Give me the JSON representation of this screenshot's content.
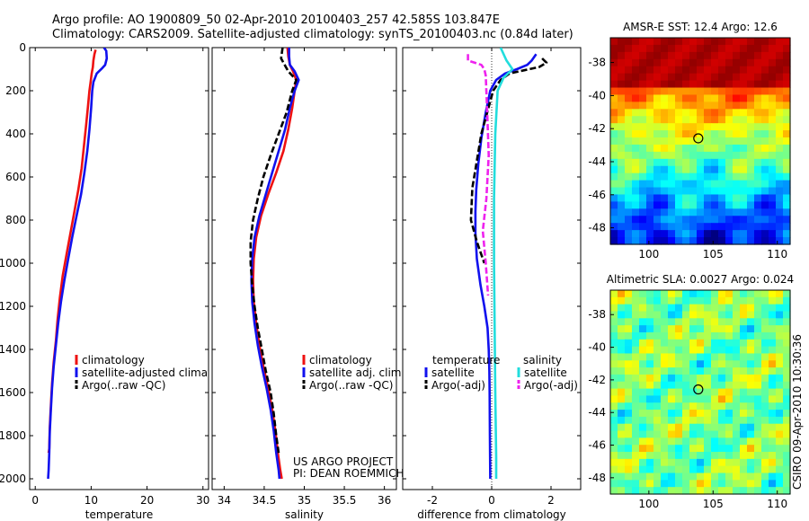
{
  "header": {
    "line1": "Argo profile: AO 1900809_50 02-Apr-2010 20100403_257 42.585S 103.847E",
    "line2": "Climatology: CARS2009. Satellite-adjusted climatology: synTS_20100403.nc (0.84d later)"
  },
  "side_label": "CSIRO 09-Apr-2010 10:30:36",
  "project": {
    "line1": "US ARGO PROJECT",
    "line2": "PI: DEAN ROEMMICH"
  },
  "colors": {
    "red": "#ee1111",
    "blue": "#1111ee",
    "black": "#000000",
    "cyan": "#22dddd",
    "magenta": "#ee22ee"
  },
  "chart_data": [
    {
      "type": "line",
      "xlabel": "temperature",
      "ylim": [
        2050,
        0
      ],
      "xlim": [
        -1,
        31
      ],
      "yticks": [
        0,
        200,
        400,
        600,
        800,
        1000,
        1200,
        1400,
        1600,
        1800,
        2000
      ],
      "xticks": [
        0,
        10,
        20,
        30
      ],
      "legend": [
        "climatology",
        "satellite-adjusted climatology",
        "Argo(..raw -QC)"
      ],
      "series": [
        {
          "name": "climatology",
          "color": "red",
          "dash": false,
          "x": [
            10.8,
            10.6,
            10.4,
            10.3,
            10.1,
            9.9,
            9.7,
            9.4,
            9.1,
            8.7,
            8.3,
            7.7,
            7.0,
            6.3,
            5.6,
            4.9,
            4.4,
            4.0,
            3.7,
            3.3,
            3.0,
            2.8,
            2.6,
            2.5,
            2.4
          ],
          "y": [
            10,
            30,
            60,
            90,
            120,
            160,
            200,
            280,
            360,
            460,
            560,
            660,
            760,
            860,
            960,
            1060,
            1160,
            1260,
            1360,
            1460,
            1560,
            1660,
            1760,
            1860,
            1880
          ]
        },
        {
          "name": "satellite-adjusted climatology",
          "color": "blue",
          "dash": false,
          "x": [
            12.3,
            12.7,
            12.8,
            12.5,
            12.0,
            11.0,
            10.4,
            10.2,
            10.0,
            9.7,
            9.3,
            8.8,
            8.2,
            7.4,
            6.6,
            5.9,
            5.2,
            4.6,
            4.1,
            3.7,
            3.3,
            3.0,
            2.8,
            2.6,
            2.5,
            2.4,
            2.3
          ],
          "y": [
            0,
            15,
            50,
            80,
            95,
            120,
            160,
            200,
            280,
            380,
            480,
            580,
            680,
            780,
            880,
            980,
            1080,
            1180,
            1280,
            1380,
            1480,
            1580,
            1680,
            1780,
            1880,
            1960,
            2000
          ]
        }
      ]
    },
    {
      "type": "line",
      "xlabel": "salinity",
      "ylim": [
        2050,
        0
      ],
      "xlim": [
        33.85,
        36.15
      ],
      "xticks": [
        34,
        34.5,
        35,
        35.5,
        36
      ],
      "legend": [
        "climatology",
        "satellite adj. clim.",
        "Argo(..raw -QC)"
      ],
      "series": [
        {
          "name": "climatology",
          "color": "red",
          "dash": false,
          "x": [
            34.79,
            34.8,
            34.82,
            34.86,
            34.9,
            34.88,
            34.85,
            34.8,
            34.74,
            34.65,
            34.55,
            34.46,
            34.4,
            34.37,
            34.36,
            34.37,
            34.4,
            34.44,
            34.49,
            34.55,
            34.6,
            34.64,
            34.67,
            34.7,
            34.72
          ],
          "y": [
            0,
            40,
            80,
            110,
            150,
            200,
            280,
            380,
            480,
            580,
            680,
            780,
            880,
            980,
            1080,
            1180,
            1280,
            1380,
            1480,
            1580,
            1680,
            1780,
            1880,
            1960,
            2000
          ]
        },
        {
          "name": "satellite adj. clim.",
          "color": "blue",
          "dash": false,
          "x": [
            34.81,
            34.81,
            34.82,
            34.88,
            34.93,
            34.88,
            34.82,
            34.76,
            34.68,
            34.6,
            34.52,
            34.44,
            34.38,
            34.35,
            34.34,
            34.35,
            34.38,
            34.42,
            34.47,
            34.53,
            34.58,
            34.62,
            34.65,
            34.68,
            34.69
          ],
          "y": [
            0,
            40,
            80,
            110,
            150,
            200,
            280,
            380,
            480,
            580,
            680,
            780,
            880,
            980,
            1080,
            1180,
            1280,
            1380,
            1480,
            1580,
            1680,
            1780,
            1880,
            1960,
            2000
          ]
        },
        {
          "name": "Argo(..raw -QC)",
          "color": "black",
          "dash": true,
          "x": [
            34.73,
            34.71,
            34.77,
            34.8,
            34.9,
            34.85,
            34.78,
            34.68,
            34.58,
            34.49,
            34.42,
            34.36,
            34.33,
            34.33,
            34.35,
            34.38,
            34.42,
            34.47,
            34.52,
            34.58,
            34.62,
            34.65,
            34.68
          ],
          "y": [
            0,
            50,
            90,
            110,
            150,
            200,
            300,
            400,
            500,
            600,
            700,
            800,
            900,
            1000,
            1100,
            1200,
            1300,
            1400,
            1500,
            1600,
            1700,
            1800,
            1880
          ]
        }
      ]
    },
    {
      "type": "line",
      "xlabel": "difference from climatology",
      "ylim": [
        2050,
        0
      ],
      "xlim": [
        -3,
        3
      ],
      "xticks": [
        -2,
        0,
        2
      ],
      "legend_left_title": "temperature",
      "legend_right_title": "salinity",
      "legend": [
        "satellite",
        "Argo(-adj)",
        "satellite",
        "Argo(-adj)"
      ],
      "series": [
        {
          "name": "temperature satellite",
          "color": "blue",
          "dash": false,
          "x": [
            1.5,
            1.35,
            1.2,
            0.85,
            0.45,
            0.15,
            -0.05,
            -0.2,
            -0.35,
            -0.45,
            -0.52,
            -0.55,
            -0.55,
            -0.5,
            -0.38,
            -0.25,
            -0.14,
            -0.1,
            -0.08,
            -0.07,
            -0.06,
            -0.05
          ],
          "y": [
            30,
            60,
            80,
            100,
            120,
            150,
            200,
            300,
            420,
            540,
            660,
            760,
            860,
            980,
            1100,
            1200,
            1300,
            1400,
            1500,
            1600,
            1800,
            2000
          ]
        },
        {
          "name": "temperature Argo(-adj)",
          "color": "black",
          "dash": true,
          "x": [
            1.7,
            1.85,
            1.6,
            1.1,
            0.6,
            0.3,
            0.05,
            -0.35,
            -0.65,
            -0.7,
            -0.5,
            -0.25
          ],
          "y": [
            50,
            70,
            90,
            105,
            120,
            150,
            200,
            400,
            650,
            800,
            900,
            1000
          ]
        },
        {
          "name": "salinity satellite",
          "color": "cyan",
          "dash": false,
          "x": [
            0.3,
            0.5,
            0.7,
            0.4,
            0.2,
            0.12,
            0.08,
            0.08,
            0.1,
            0.12,
            0.15,
            0.15
          ],
          "y": [
            0,
            60,
            100,
            140,
            200,
            400,
            700,
            1000,
            1300,
            1600,
            1900,
            2000
          ]
        },
        {
          "name": "salinity Argo(-adj)",
          "color": "magenta",
          "dash": true,
          "x": [
            -0.8,
            -0.8,
            -0.35,
            -0.25,
            -0.2,
            -0.15,
            -0.1,
            -0.18,
            -0.3,
            -0.2,
            -0.12
          ],
          "y": [
            30,
            60,
            80,
            100,
            130,
            300,
            500,
            700,
            850,
            1000,
            1150
          ]
        }
      ]
    },
    {
      "type": "heatmap",
      "title": "AMSR-E SST: 12.4 Argo: 12.6",
      "xlim": [
        97,
        111
      ],
      "ylim": [
        -49,
        -36.5
      ],
      "xticks": [
        100,
        105,
        110
      ],
      "yticks": [
        -38,
        -40,
        -42,
        -44,
        -46,
        -48
      ],
      "marker": {
        "lon": 103.847,
        "lat": -42.585
      },
      "colormap": "jet"
    },
    {
      "type": "heatmap",
      "title": "Altimetric SLA: 0.0027 Argo: 0.024",
      "xlim": [
        97,
        111
      ],
      "ylim": [
        -49,
        -36.5
      ],
      "xticks": [
        100,
        105,
        110
      ],
      "yticks": [
        -38,
        -40,
        -42,
        -44,
        -46,
        -48
      ],
      "marker": {
        "lon": 103.847,
        "lat": -42.585
      },
      "colormap": "jet"
    }
  ]
}
